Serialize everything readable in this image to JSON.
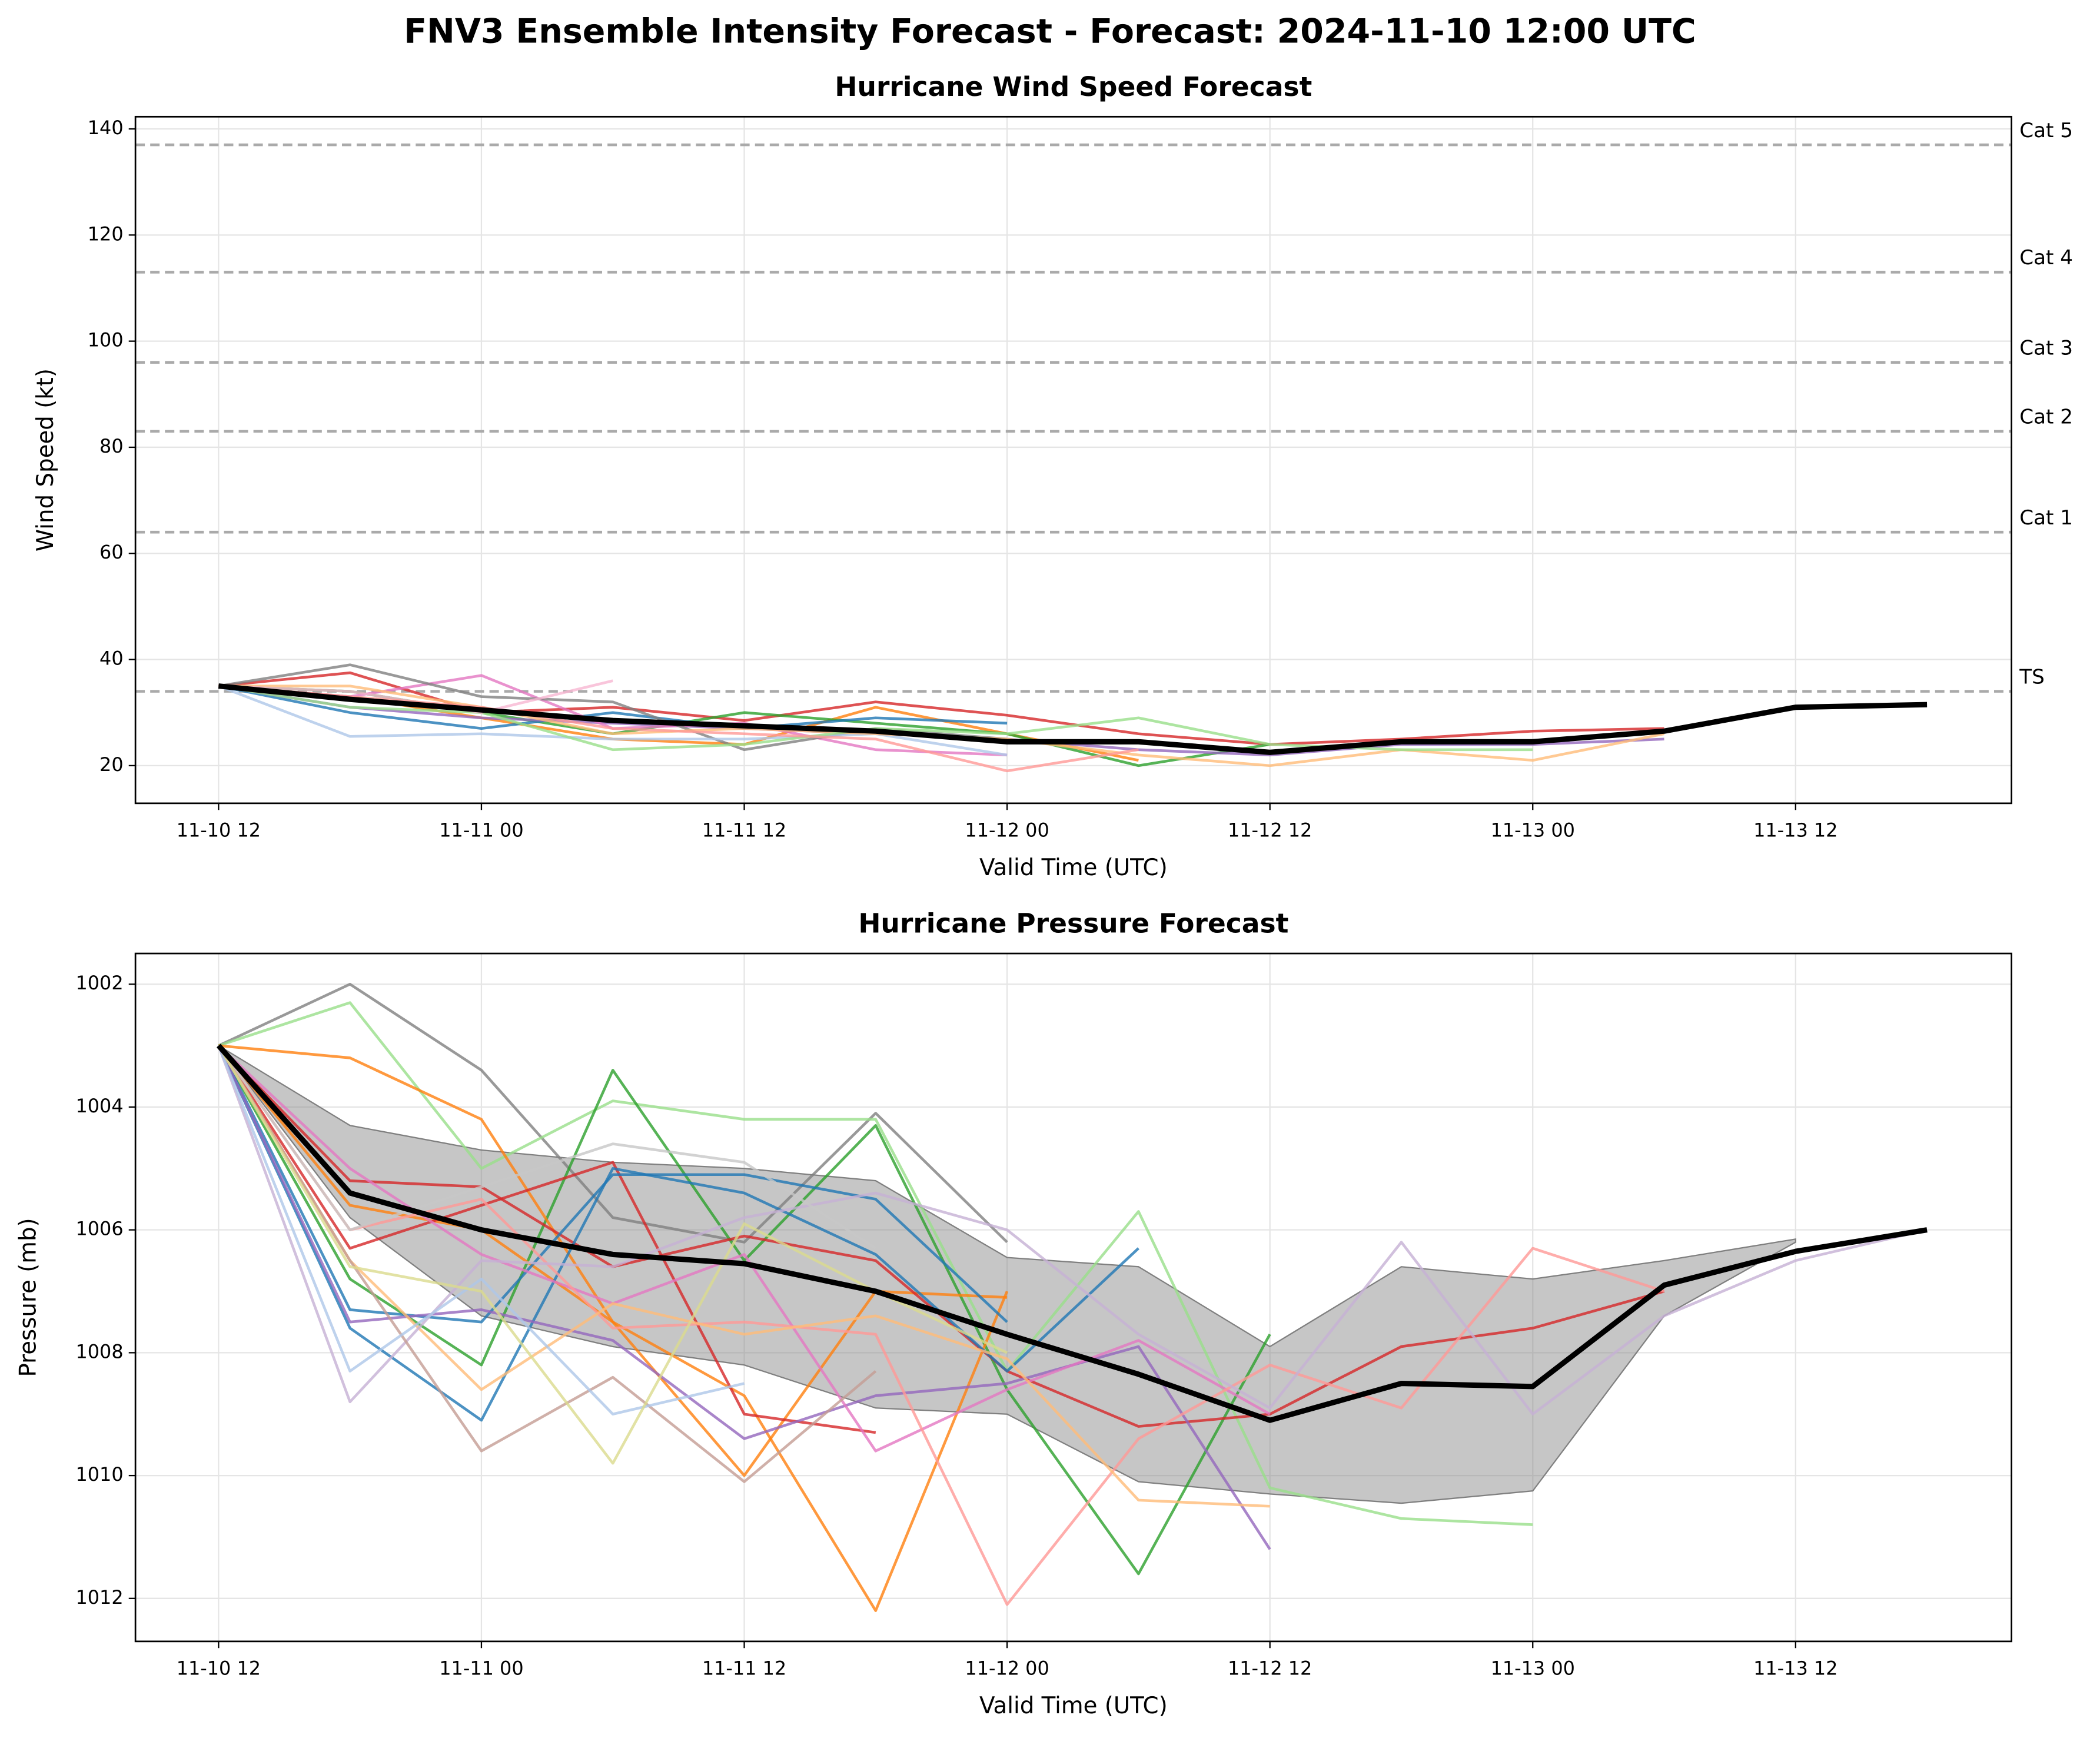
{
  "title": "FNV3 Ensemble Intensity Forecast - Forecast: 2024-11-10 12:00 UTC",
  "chart_data": [
    {
      "type": "line",
      "title": "Hurricane Wind Speed Forecast",
      "xlabel": "Valid Time (UTC)",
      "ylabel": "Wind Speed (kt)",
      "categories": [
        "11-10 12",
        null,
        "11-11 00",
        null,
        "11-11 12",
        null,
        "11-12 00",
        null,
        "11-12 12",
        null,
        "11-13 00",
        null,
        "11-13 12",
        null
      ],
      "ylim": [
        12.9,
        142.3
      ],
      "yticks": [
        20,
        40,
        60,
        80,
        100,
        120,
        140
      ],
      "grid": true,
      "thresholds": [
        {
          "label": "TS",
          "value": 34
        },
        {
          "label": "Cat 1",
          "value": 64
        },
        {
          "label": "Cat 2",
          "value": 83
        },
        {
          "label": "Cat 3",
          "value": 96
        },
        {
          "label": "Cat 4",
          "value": 113
        },
        {
          "label": "Cat 5",
          "value": 137
        }
      ],
      "series": [
        {
          "color": "#d62728",
          "values": [
            35,
            37.5,
            30,
            31,
            28.5,
            32,
            29.5,
            26,
            24,
            25,
            26.5,
            27,
            null,
            null
          ]
        },
        {
          "color": "#ff7f0e",
          "values": [
            35,
            33,
            29,
            25,
            24,
            31,
            26,
            21,
            null,
            null,
            null,
            null,
            null,
            null
          ]
        },
        {
          "color": "#2ca02c",
          "values": [
            35,
            34,
            30,
            26,
            30,
            28,
            26,
            20,
            24,
            null,
            null,
            null,
            null,
            null
          ]
        },
        {
          "color": "#1f77b4",
          "values": [
            35,
            30,
            27,
            30,
            27,
            29,
            28,
            null,
            null,
            null,
            null,
            null,
            null,
            null
          ]
        },
        {
          "color": "#9467bd",
          "values": [
            35,
            31,
            29,
            28,
            27,
            26,
            25,
            23,
            22,
            24,
            24,
            25,
            null,
            null
          ]
        },
        {
          "color": "#e377c2",
          "values": [
            35,
            33,
            37,
            27,
            28,
            23,
            22,
            null,
            null,
            null,
            null,
            null,
            null,
            null
          ]
        },
        {
          "color": "#7f7f7f",
          "values": [
            35,
            39,
            33,
            32,
            23,
            27,
            25,
            null,
            null,
            null,
            null,
            null,
            null,
            null
          ]
        },
        {
          "color": "#aec7e8",
          "values": [
            35,
            25.5,
            26,
            25,
            25,
            26,
            22,
            null,
            null,
            null,
            null,
            null,
            null,
            null
          ]
        },
        {
          "color": "#ffbb78",
          "values": [
            35,
            35,
            31,
            26,
            27,
            26,
            25,
            22,
            20,
            23,
            21,
            26,
            null,
            null
          ]
        },
        {
          "color": "#98df8a",
          "values": [
            35,
            31,
            30,
            23,
            24,
            27,
            26,
            29,
            24,
            23,
            23,
            null,
            null,
            null
          ]
        },
        {
          "color": "#f7b6d2",
          "values": [
            35,
            34,
            30,
            36,
            null,
            null,
            null,
            null,
            null,
            null,
            null,
            null,
            null,
            null
          ]
        },
        {
          "color": "#ff9896",
          "values": [
            35,
            33,
            31,
            27,
            26,
            25,
            19,
            23,
            null,
            null,
            null,
            null,
            null,
            null
          ]
        },
        {
          "color": "#000000",
          "values": [
            35,
            32.5,
            30.5,
            28.5,
            27.5,
            26.5,
            24.5,
            24.5,
            22.5,
            24.5,
            24.5,
            26.5,
            31,
            31.5
          ]
        }
      ]
    },
    {
      "type": "line",
      "title": "Hurricane Pressure Forecast",
      "xlabel": "Valid Time (UTC)",
      "ylabel": "Pressure (mb)",
      "categories": [
        "11-10 12",
        null,
        "11-11 00",
        null,
        "11-11 12",
        null,
        "11-12 00",
        null,
        "11-12 12",
        null,
        "11-13 00",
        null,
        "11-13 12",
        null
      ],
      "ylim": [
        1001.5,
        1012.7
      ],
      "inverted": true,
      "yticks": [
        1002,
        1004,
        1006,
        1008,
        1010,
        1012
      ],
      "grid": true,
      "band_color": "#808080",
      "band_upper": [
        1003,
        1004.3,
        1004.7,
        1004.9,
        1005,
        1005.2,
        1006.45,
        1006.6,
        1007.9,
        1006.6,
        1006.8,
        1006.5,
        1006.15,
        null
      ],
      "band_lower": [
        1003,
        1005.8,
        1007.4,
        1007.9,
        1008.2,
        1008.9,
        1009,
        1010.1,
        1010.3,
        1010.45,
        1010.25,
        1007.4,
        1006.2,
        null
      ],
      "series": [
        {
          "color": "#7f7f7f",
          "values": [
            1003,
            1002,
            1003.4,
            1005.8,
            1006.2,
            1004.1,
            1006.2,
            null,
            null,
            null,
            null,
            null,
            null,
            null
          ]
        },
        {
          "color": "#98df8a",
          "values": [
            1003,
            1002.3,
            1005,
            1003.9,
            1004.2,
            1004.2,
            1008.3,
            1005.7,
            1010.2,
            1010.7,
            1010.8,
            null,
            null,
            null
          ]
        },
        {
          "color": "#2ca02c",
          "values": [
            1003,
            1006.8,
            1008.2,
            1003.4,
            1006.5,
            1004.3,
            1008.6,
            1011.6,
            1007.7,
            null,
            null,
            null,
            null,
            null
          ]
        },
        {
          "color": "#ff7f0e",
          "values": [
            1003,
            1003.2,
            1004.2,
            1007.5,
            1010,
            1007,
            1007.1,
            null,
            null,
            null,
            null,
            null,
            null,
            null
          ]
        },
        {
          "color": "#ff7f0e",
          "values": [
            1003,
            1005.6,
            1006,
            1007.5,
            1008.7,
            1012.2,
            1007,
            null,
            null,
            null,
            null,
            null,
            null,
            null
          ]
        },
        {
          "color": "#d62728",
          "values": [
            1003,
            1006.3,
            1005.6,
            1004.9,
            1009,
            1009.3,
            null,
            null,
            null,
            null,
            null,
            null,
            null,
            null
          ]
        },
        {
          "color": "#d62728",
          "values": [
            1003,
            1005.2,
            1005.3,
            1006.6,
            1006.1,
            1006.5,
            1008.3,
            1009.2,
            1009,
            1007.9,
            1007.6,
            1007,
            null,
            null
          ]
        },
        {
          "color": "#1f77b4",
          "values": [
            1003,
            1007.6,
            1009.1,
            1005,
            1005.4,
            1006.4,
            1008.3,
            1006.3,
            null,
            null,
            null,
            null,
            null,
            null
          ]
        },
        {
          "color": "#1f77b4",
          "values": [
            1003,
            1007.3,
            1007.5,
            1005.1,
            1005.1,
            1005.5,
            1007.5,
            null,
            null,
            null,
            null,
            null,
            null,
            null
          ]
        },
        {
          "color": "#9467bd",
          "values": [
            1003,
            1007.5,
            1007.3,
            1007.8,
            1009.4,
            1008.7,
            1008.5,
            1007.9,
            1011.2,
            null,
            null,
            null,
            null,
            null
          ]
        },
        {
          "color": "#e377c2",
          "values": [
            1003,
            1005,
            1006.4,
            1007.2,
            1006.4,
            1009.6,
            1008.6,
            1007.8,
            1009,
            null,
            null,
            null,
            null,
            null
          ]
        },
        {
          "color": "#ff9896",
          "values": [
            1003,
            1006,
            1005.5,
            1007.6,
            1007.5,
            1007.7,
            1012.1,
            1009.4,
            1008.2,
            1008.9,
            1006.3,
            1007,
            null,
            null
          ]
        },
        {
          "color": "#ffbb78",
          "values": [
            1003,
            1006.5,
            1008.6,
            1007.2,
            1007.7,
            1007.4,
            1008.1,
            1010.4,
            1010.5,
            null,
            null,
            null,
            null,
            null
          ]
        },
        {
          "color": "#c5b0d5",
          "values": [
            1003,
            1008.8,
            1006.5,
            1006.6,
            1005.8,
            1005.4,
            1006,
            1007.7,
            1008.9,
            1006.2,
            1009,
            1007.4,
            1006.5,
            1006
          ]
        },
        {
          "color": "#c7c7c7",
          "values": [
            1003,
            1006,
            1005.3,
            1004.6,
            1004.9,
            1006.3,
            null,
            null,
            null,
            null,
            null,
            null,
            null,
            null
          ]
        },
        {
          "color": "#c49c94",
          "values": [
            1003,
            1006.5,
            1009.6,
            1008.4,
            1010.1,
            1008.3,
            null,
            null,
            null,
            null,
            null,
            null,
            null,
            null
          ]
        },
        {
          "color": "#aec7e8",
          "values": [
            1003,
            1008.3,
            1006.8,
            1009,
            1008.5,
            null,
            null,
            null,
            null,
            null,
            null,
            null,
            null,
            null
          ]
        },
        {
          "color": "#dbdb8d",
          "values": [
            1003,
            1006.6,
            1007,
            1009.8,
            1005.9,
            1007,
            1008,
            null,
            null,
            null,
            null,
            null,
            null,
            null
          ]
        },
        {
          "color": "#000000",
          "values": [
            1003,
            1005.4,
            1006,
            1006.4,
            1006.55,
            1007,
            1007.7,
            1008.35,
            1009.1,
            1008.5,
            1008.55,
            1006.9,
            1006.35,
            1006
          ]
        }
      ]
    }
  ]
}
